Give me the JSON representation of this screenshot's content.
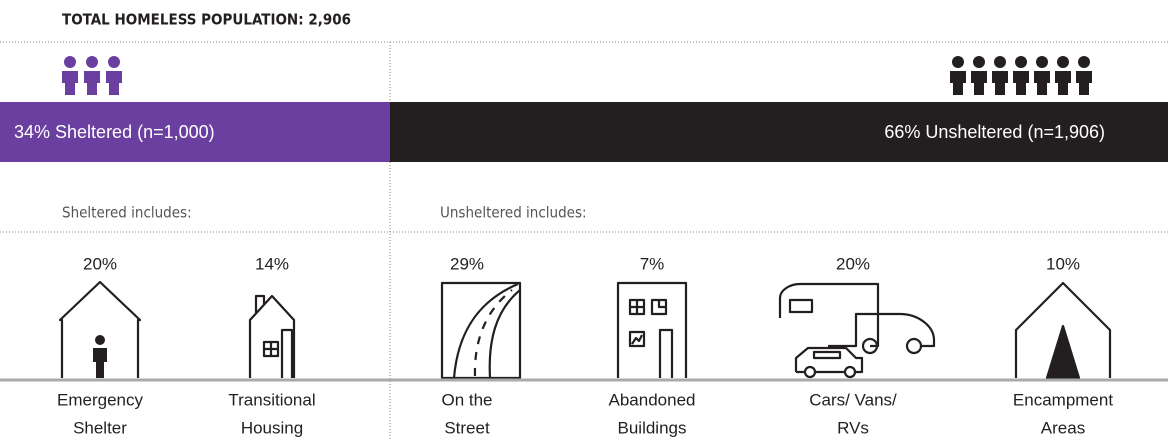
{
  "title": "TOTAL HOMELESS POPULATION: 2,906",
  "bar": {
    "sheltered": "34% Sheltered (n=1,000)",
    "unsheltered": "66% Unsheltered (n=1,906)"
  },
  "sheltered_heading": "Sheltered includes:",
  "unsheltered_heading": "Unsheltered includes:",
  "items": [
    {
      "percent": "20%",
      "label": [
        "Emergency",
        "Shelter"
      ]
    },
    {
      "percent": "14%",
      "label": [
        "Transitional",
        "Housing"
      ]
    },
    {
      "percent": "29%",
      "label": [
        "On the",
        "Street"
      ]
    },
    {
      "percent": "7%",
      "label": [
        "Abandoned",
        "Buildings"
      ]
    },
    {
      "percent": "20%",
      "label": [
        "Cars/ Vans/",
        "RVs"
      ]
    },
    {
      "percent": "10%",
      "label": [
        "Encampment",
        "Areas"
      ]
    }
  ]
}
